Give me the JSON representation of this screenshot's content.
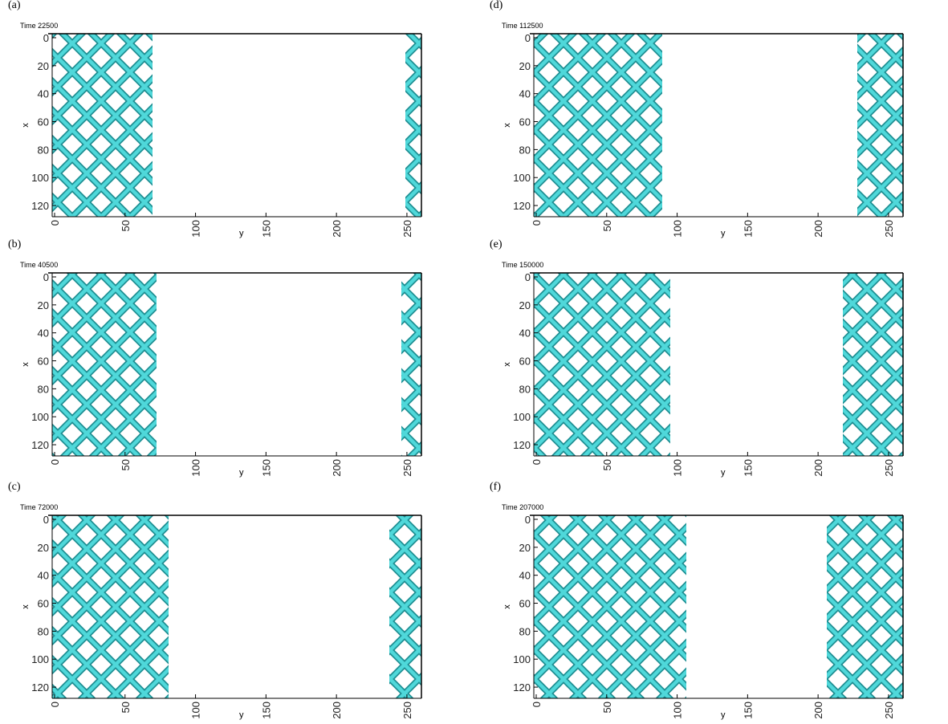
{
  "panels": [
    {
      "label": "(a)",
      "time": "Time 22500",
      "xlabel": "x",
      "ylabel": "y",
      "xticks": [
        0,
        20,
        40,
        60,
        80,
        100,
        120
      ],
      "yticks": [
        0,
        50,
        100,
        150,
        200,
        250
      ]
    },
    {
      "label": "(b)",
      "time": "Time 40500",
      "xlabel": "x",
      "ylabel": "y",
      "xticks": [
        0,
        20,
        40,
        60,
        80,
        100,
        120
      ],
      "yticks": [
        0,
        50,
        100,
        150,
        200,
        250
      ]
    },
    {
      "label": "(c)",
      "time": "Time 72000",
      "xlabel": "x",
      "ylabel": "y",
      "xticks": [
        0,
        20,
        40,
        60,
        80,
        100,
        120
      ],
      "yticks": [
        0,
        50,
        100,
        150,
        200,
        250
      ]
    },
    {
      "label": "(d)",
      "time": "Time 112500",
      "xlabel": "x",
      "ylabel": "y",
      "xticks": [
        0,
        20,
        40,
        60,
        80,
        100,
        120
      ],
      "yticks": [
        0,
        50,
        100,
        150,
        200,
        250
      ]
    },
    {
      "label": "(e)",
      "time": "Time 150000",
      "xlabel": "x",
      "ylabel": "y",
      "xticks": [
        0,
        20,
        40,
        60,
        80,
        100,
        120
      ],
      "yticks": [
        0,
        50,
        100,
        150,
        200,
        250
      ]
    },
    {
      "label": "(f)",
      "time": "Time 207000",
      "xlabel": "x",
      "ylabel": "y",
      "xticks": [
        0,
        20,
        40,
        60,
        80,
        100,
        120
      ],
      "yticks": [
        0,
        50,
        100,
        150,
        200,
        250
      ]
    }
  ]
}
